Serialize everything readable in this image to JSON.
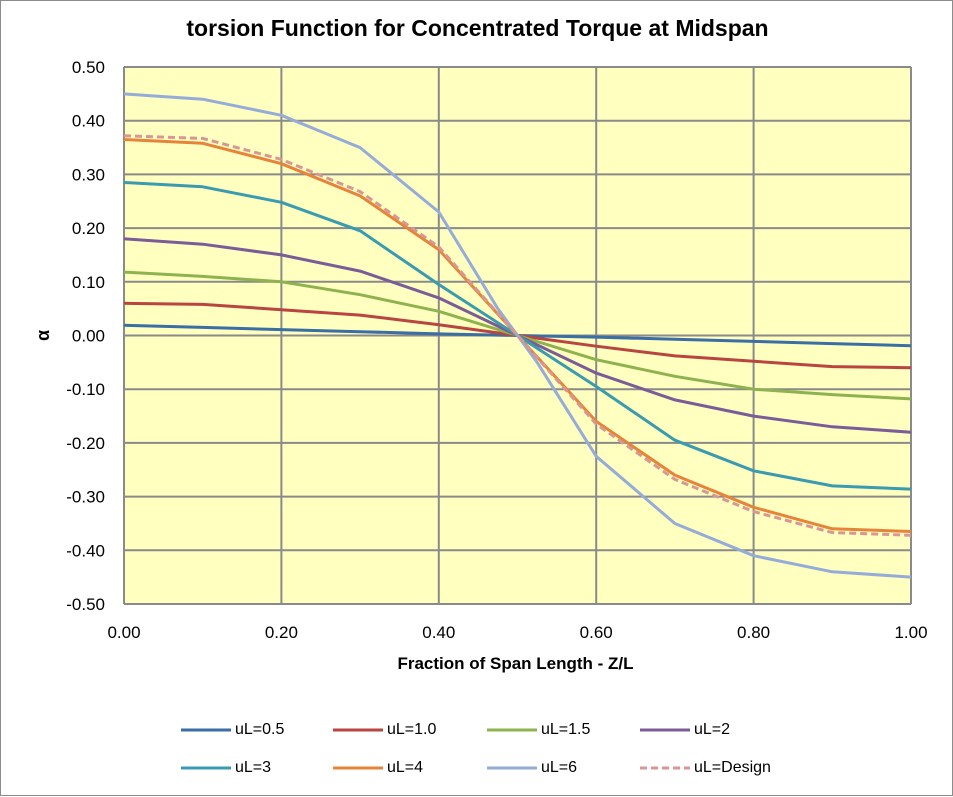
{
  "chart_data": {
    "type": "line",
    "title": "torsion Function for Concentrated Torque at Midspan",
    "xlabel": "Fraction of Span Length - Z/L",
    "ylabel": "α",
    "xlim": [
      0,
      1
    ],
    "ylim": [
      -0.5,
      0.5
    ],
    "xticks": [
      0,
      0.2,
      0.4,
      0.6,
      0.8,
      1.0
    ],
    "xtick_labels": [
      "0.00",
      "0.20",
      "0.40",
      "0.60",
      "0.80",
      "1.00"
    ],
    "yticks": [
      0.5,
      0.4,
      0.3,
      0.2,
      0.1,
      0.0,
      -0.1,
      -0.2,
      -0.3,
      -0.4,
      -0.5
    ],
    "ytick_labels": [
      "0.50",
      "0.40",
      "0.30",
      "0.20",
      "0.10",
      "0.00",
      "-0.10",
      "-0.20",
      "-0.30",
      "-0.40",
      "-0.50"
    ],
    "grid": true,
    "plot_background": "#ffffc0",
    "legend_position": "bottom",
    "series": [
      {
        "name": "uL=0.5",
        "color": "#3a6ea5",
        "dashed": false,
        "x": [
          0,
          0.1,
          0.2,
          0.3,
          0.4,
          0.5,
          0.6,
          0.7,
          0.8,
          0.9,
          1.0
        ],
        "y": [
          0.019,
          0.015,
          0.011,
          0.007,
          0.003,
          0.0,
          -0.003,
          -0.007,
          -0.011,
          -0.015,
          -0.019
        ]
      },
      {
        "name": "uL=1.0",
        "color": "#b94441",
        "dashed": false,
        "x": [
          0,
          0.1,
          0.2,
          0.3,
          0.4,
          0.5,
          0.6,
          0.7,
          0.8,
          0.9,
          1.0
        ],
        "y": [
          0.06,
          0.058,
          0.048,
          0.038,
          0.02,
          0.0,
          -0.02,
          -0.038,
          -0.048,
          -0.058,
          -0.06
        ]
      },
      {
        "name": "uL=1.5",
        "color": "#8eb24e",
        "dashed": false,
        "x": [
          0,
          0.1,
          0.2,
          0.3,
          0.4,
          0.5,
          0.6,
          0.7,
          0.8,
          0.9,
          1.0
        ],
        "y": [
          0.118,
          0.11,
          0.1,
          0.076,
          0.045,
          0.0,
          -0.045,
          -0.076,
          -0.1,
          -0.11,
          -0.118
        ]
      },
      {
        "name": "uL=2",
        "color": "#7b5b98",
        "dashed": false,
        "x": [
          0,
          0.1,
          0.2,
          0.3,
          0.4,
          0.5,
          0.6,
          0.7,
          0.8,
          0.9,
          1.0
        ],
        "y": [
          0.18,
          0.17,
          0.15,
          0.12,
          0.07,
          0.0,
          -0.07,
          -0.12,
          -0.15,
          -0.17,
          -0.18
        ]
      },
      {
        "name": "uL=3",
        "color": "#3a9bb0",
        "dashed": false,
        "x": [
          0,
          0.1,
          0.2,
          0.3,
          0.4,
          0.5,
          0.6,
          0.7,
          0.8,
          0.9,
          1.0
        ],
        "y": [
          0.285,
          0.277,
          0.248,
          0.195,
          0.095,
          0.0,
          -0.095,
          -0.195,
          -0.252,
          -0.28,
          -0.286
        ]
      },
      {
        "name": "uL=4",
        "color": "#e6843a",
        "dashed": false,
        "x": [
          0,
          0.1,
          0.2,
          0.3,
          0.4,
          0.5,
          0.6,
          0.7,
          0.8,
          0.9,
          1.0
        ],
        "y": [
          0.365,
          0.358,
          0.32,
          0.26,
          0.16,
          0.0,
          -0.16,
          -0.26,
          -0.32,
          -0.36,
          -0.365
        ]
      },
      {
        "name": "uL=6",
        "color": "#95abd8",
        "dashed": false,
        "x": [
          0,
          0.1,
          0.2,
          0.3,
          0.4,
          0.475,
          0.5,
          0.525,
          0.6,
          0.7,
          0.8,
          0.9,
          1.0
        ],
        "y": [
          0.45,
          0.44,
          0.41,
          0.35,
          0.23,
          0.05,
          0.0,
          -0.05,
          -0.225,
          -0.35,
          -0.41,
          -0.44,
          -0.45
        ]
      },
      {
        "name": "uL=Design",
        "color": "#d99694",
        "dashed": true,
        "x": [
          0,
          0.1,
          0.2,
          0.3,
          0.4,
          0.5,
          0.6,
          0.7,
          0.8,
          0.9,
          1.0
        ],
        "y": [
          0.372,
          0.367,
          0.328,
          0.268,
          0.165,
          0.0,
          -0.165,
          -0.268,
          -0.328,
          -0.367,
          -0.372
        ]
      }
    ]
  }
}
